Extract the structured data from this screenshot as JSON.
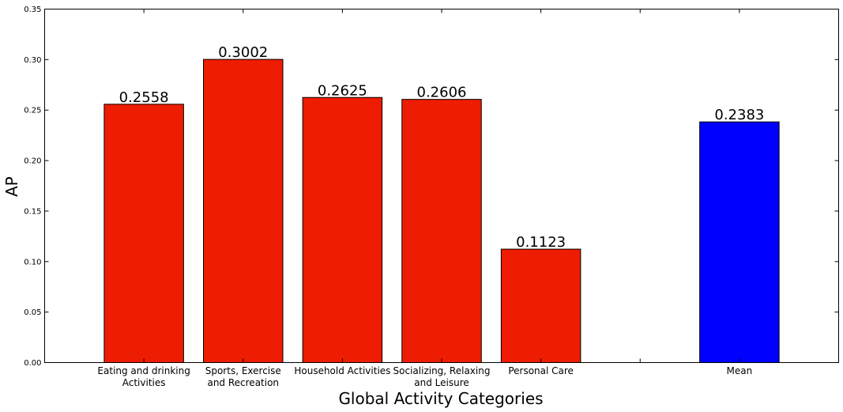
{
  "chart_data": {
    "type": "bar",
    "title": "",
    "xlabel": "Global Activity Categories",
    "ylabel": "AP",
    "ylim": [
      0,
      0.35
    ],
    "yticks": [
      "0.00",
      "0.05",
      "0.10",
      "0.15",
      "0.20",
      "0.25",
      "0.30",
      "0.35"
    ],
    "grid": false,
    "categories": [
      [
        "Eating and drinking",
        "Activities"
      ],
      [
        "Sports, Exercise",
        "and Recreation"
      ],
      [
        "Household Activities"
      ],
      [
        "Socializing, Relaxing",
        "and Leisure"
      ],
      [
        "Personal Care"
      ],
      [
        "Mean"
      ]
    ],
    "x_positions": [
      1,
      2,
      3,
      4,
      5,
      7
    ],
    "xlim": [
      0,
      8
    ],
    "values": [
      0.2558,
      0.3002,
      0.2625,
      0.2606,
      0.1123,
      0.2383
    ],
    "value_labels": [
      "0.2558",
      "0.3002",
      "0.2625",
      "0.2606",
      "0.1123",
      "0.2383"
    ],
    "colors": [
      "#ee1c00",
      "#ee1c00",
      "#ee1c00",
      "#ee1c00",
      "#ee1c00",
      "#0000ff"
    ]
  }
}
